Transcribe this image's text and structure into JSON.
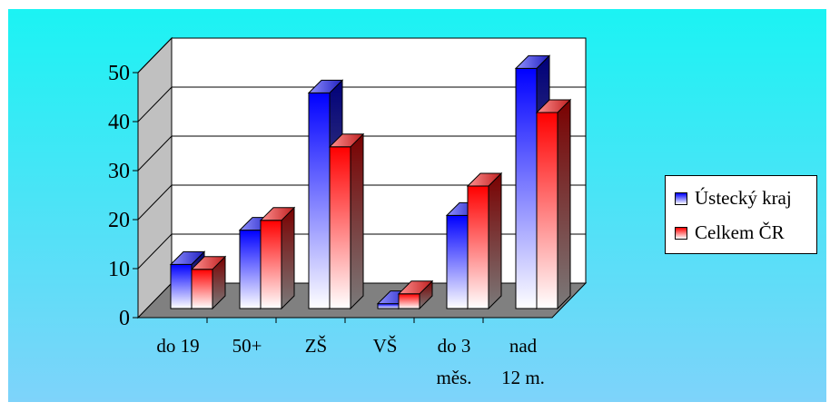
{
  "chart_data": {
    "type": "bar",
    "categories": [
      "do 19",
      "50+",
      "ZŠ",
      "VŠ",
      "do 3 měs.",
      "nad 12 m."
    ],
    "category_lines": [
      [
        "do 19"
      ],
      [
        "50+"
      ],
      [
        "ZŠ"
      ],
      [
        "VŠ"
      ],
      [
        "do 3",
        "měs."
      ],
      [
        "nad",
        "12 m."
      ]
    ],
    "series": [
      {
        "name": "Ústecký kraj",
        "values": [
          9,
          16,
          44,
          1,
          19,
          49
        ],
        "color": "#0000ff"
      },
      {
        "name": "Celkem ČR",
        "values": [
          8,
          18,
          33,
          3,
          25,
          40
        ],
        "color": "#ff0000"
      }
    ],
    "yticks": [
      "0",
      "10",
      "20",
      "30",
      "40",
      "50"
    ],
    "ylim": [
      0,
      50
    ],
    "grid": true,
    "legend_position": "right",
    "three_d": true,
    "title": "",
    "xlabel": "",
    "ylabel": ""
  },
  "colors": {
    "background_top": "#1bf3f3",
    "background_bottom": "#7ed3fa",
    "wall": "#ffffff",
    "floor": "#808080"
  }
}
